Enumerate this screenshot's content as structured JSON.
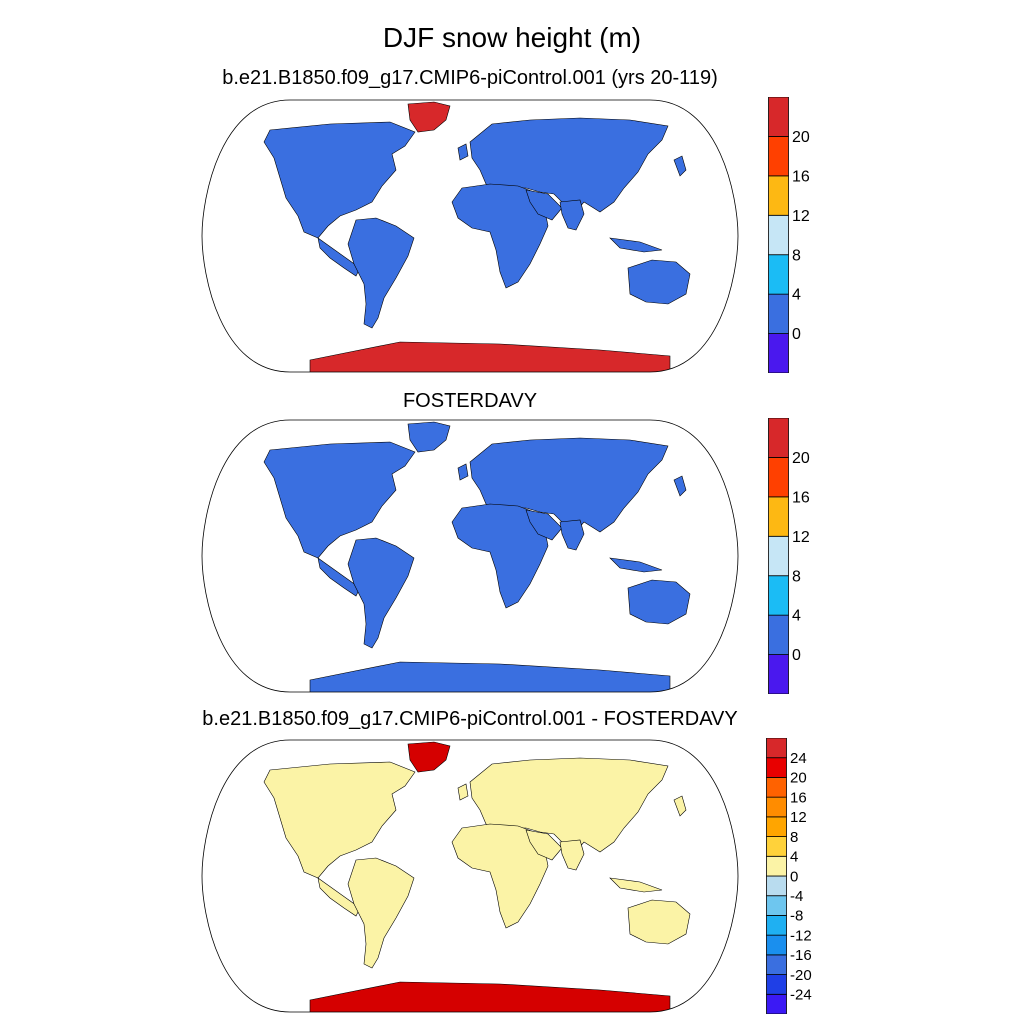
{
  "title": "DJF snow height (m)",
  "colors": {
    "ocean": "#ffffff",
    "outline": "#000000"
  },
  "panels": [
    {
      "title": "b.e21.B1850.f09_g17.CMIP6-piControl.001 (yrs 20-119)",
      "land_color": "#3a6fe0",
      "greenland_color": "#d7282a",
      "antarctica_color": "#d7282a",
      "colorbar": {
        "colors": [
          "#4a18ee",
          "#3a6fe0",
          "#1bbcf5",
          "#c6e6f6",
          "#fdb813",
          "#ff4000",
          "#d7282a"
        ],
        "labels": [
          "0",
          "4",
          "8",
          "12",
          "16",
          "20"
        ]
      }
    },
    {
      "title": "FOSTERDAVY",
      "land_color": "#3a6fe0",
      "greenland_color": "#3a6fe0",
      "antarctica_color": "#3a6fe0",
      "colorbar": {
        "colors": [
          "#4a18ee",
          "#3a6fe0",
          "#1bbcf5",
          "#c6e6f6",
          "#fdb813",
          "#ff4000",
          "#d7282a"
        ],
        "labels": [
          "0",
          "4",
          "8",
          "12",
          "16",
          "20"
        ]
      }
    },
    {
      "title": "b.e21.B1850.f09_g17.CMIP6-piControl.001 - FOSTERDAVY",
      "land_color": "#fbf3a6",
      "greenland_color": "#d50000",
      "antarctica_color": "#d50000",
      "colorbar": {
        "colors": [
          "#3b19f5",
          "#1f3fe6",
          "#3a6fe0",
          "#1a8fee",
          "#1fb0f2",
          "#6ec6ef",
          "#b9dcef",
          "#fbf3a6",
          "#ffd23a",
          "#ffa500",
          "#ff8c00",
          "#ff6200",
          "#e80000",
          "#d7282a"
        ],
        "labels": [
          "-24",
          "-20",
          "-16",
          "-12",
          "-8",
          "-4",
          "0",
          "4",
          "8",
          "12",
          "16",
          "20",
          "24"
        ]
      }
    }
  ]
}
